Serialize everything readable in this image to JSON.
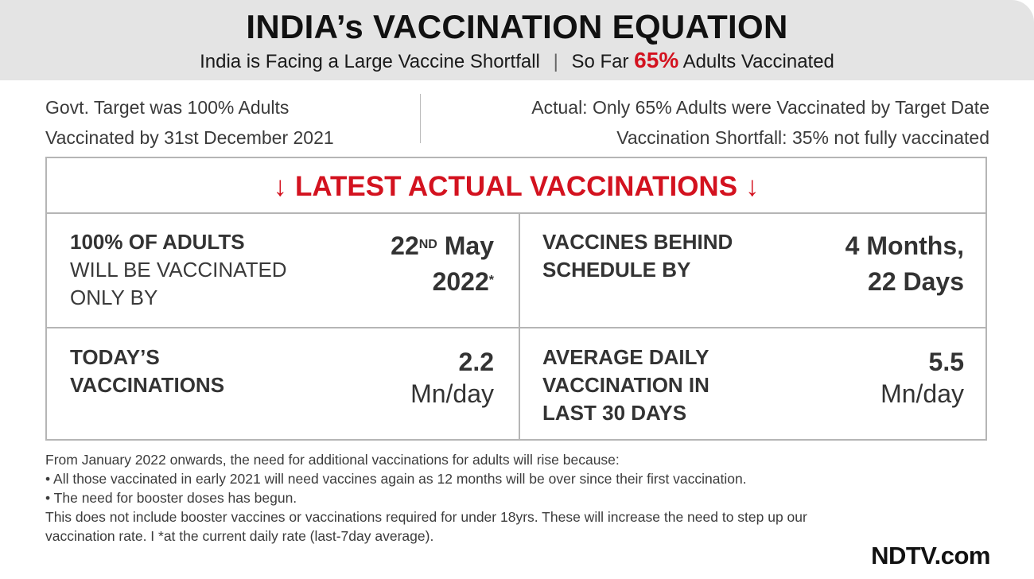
{
  "header": {
    "title": "INDIA’s VACCINATION EQUATION",
    "subtitle_left": "India is Facing a Large Vaccine Shortfall",
    "separator": "|",
    "subtitle_right_prefix": "So Far",
    "subtitle_right_percent": "65%",
    "subtitle_right_suffix": "Adults Vaccinated"
  },
  "info": {
    "left_line1": "Govt. Target was 100% Adults",
    "left_line2": "Vaccinated by 31st December 2021",
    "right_line1": "Actual: Only 65% Adults were Vaccinated by Target Date",
    "right_line2": "Vaccination Shortfall: 35% not fully vaccinated"
  },
  "panel": {
    "arrow_left": "↓",
    "heading": "LATEST ACTUAL VACCINATIONS",
    "arrow_right": "↓",
    "cells": {
      "date": {
        "label_bold": "100% OF ADULTS",
        "label_line2": "WILL BE VACCINATED",
        "label_line3": "ONLY BY",
        "value_day": "22",
        "value_sup": "ND",
        "value_month": "May",
        "value_year": "2022",
        "value_mark": "*"
      },
      "behind": {
        "label_line1": "VACCINES BEHIND",
        "label_line2": "SCHEDULE BY",
        "value_line1": "4 Months,",
        "value_line2": "22 Days"
      },
      "today": {
        "label_line1": "TODAY’S",
        "label_line2": "VACCINATIONS",
        "value": "2.2",
        "unit": "Mn/day"
      },
      "average": {
        "label_line1": "AVERAGE DAILY",
        "label_line2": "VACCINATION IN",
        "label_line3": "LAST 30 DAYS",
        "value": "5.5",
        "unit": "Mn/day"
      }
    }
  },
  "notes": [
    "From January 2022 onwards, the need for additional vaccinations for adults will rise because:",
    "• All those vaccinated in early 2021 will need vaccines again as 12 months will be over since their first vaccination.",
    "• The need for booster doses has begun.",
    "This does not include booster vaccines or vaccinations required for under 18yrs. These will increase the need to step up our",
    "vaccination rate.  I *at the current daily rate (last-7day average)."
  ],
  "brand": "NDTV.com",
  "colors": {
    "accent": "#d3121f",
    "header_bg": "#e4e4e4",
    "border": "#b5b5b5"
  }
}
